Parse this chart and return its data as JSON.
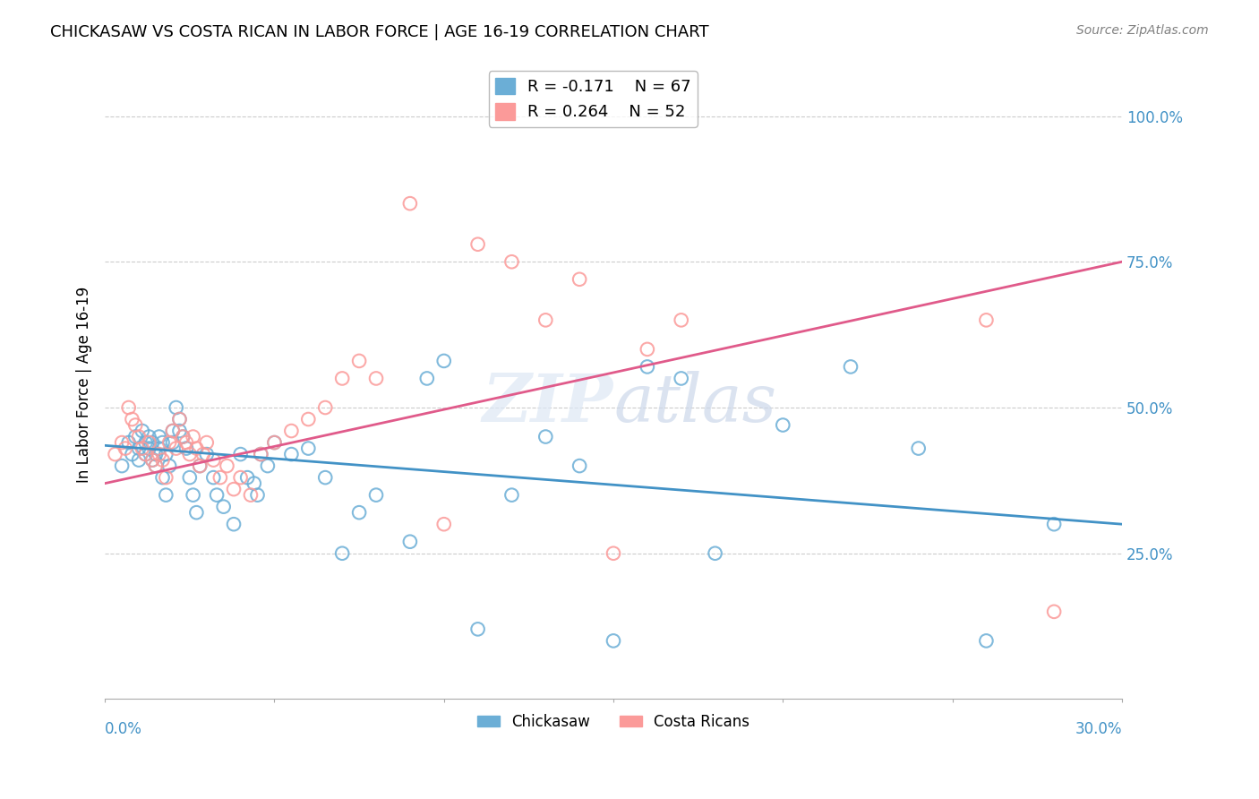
{
  "title": "CHICKASAW VS COSTA RICAN IN LABOR FORCE | AGE 16-19 CORRELATION CHART",
  "source": "Source: ZipAtlas.com",
  "ylabel": "In Labor Force | Age 16-19",
  "xlim": [
    0.0,
    0.3
  ],
  "ylim": [
    0.0,
    1.08
  ],
  "legend_blue_r": "-0.171",
  "legend_blue_n": "67",
  "legend_pink_r": "0.264",
  "legend_pink_n": "52",
  "blue_color": "#6baed6",
  "pink_color": "#fb9a99",
  "blue_line_color": "#4292c6",
  "pink_line_color": "#e05a8a",
  "tick_color": "#4292c6",
  "blue_scatter_x": [
    0.005,
    0.007,
    0.008,
    0.009,
    0.01,
    0.01,
    0.011,
    0.012,
    0.012,
    0.013,
    0.013,
    0.014,
    0.014,
    0.015,
    0.015,
    0.016,
    0.016,
    0.017,
    0.017,
    0.018,
    0.018,
    0.019,
    0.02,
    0.02,
    0.021,
    0.022,
    0.022,
    0.023,
    0.024,
    0.025,
    0.026,
    0.027,
    0.028,
    0.03,
    0.032,
    0.033,
    0.035,
    0.038,
    0.04,
    0.042,
    0.044,
    0.045,
    0.046,
    0.048,
    0.05,
    0.055,
    0.06,
    0.065,
    0.07,
    0.075,
    0.08,
    0.09,
    0.095,
    0.1,
    0.11,
    0.12,
    0.13,
    0.14,
    0.15,
    0.16,
    0.17,
    0.18,
    0.2,
    0.22,
    0.24,
    0.26,
    0.28
  ],
  "blue_scatter_y": [
    0.4,
    0.44,
    0.42,
    0.45,
    0.43,
    0.41,
    0.46,
    0.44,
    0.42,
    0.43,
    0.45,
    0.44,
    0.41,
    0.42,
    0.4,
    0.43,
    0.45,
    0.38,
    0.44,
    0.35,
    0.42,
    0.4,
    0.46,
    0.44,
    0.5,
    0.48,
    0.46,
    0.45,
    0.43,
    0.38,
    0.35,
    0.32,
    0.4,
    0.42,
    0.38,
    0.35,
    0.33,
    0.3,
    0.42,
    0.38,
    0.37,
    0.35,
    0.42,
    0.4,
    0.44,
    0.42,
    0.43,
    0.38,
    0.25,
    0.32,
    0.35,
    0.27,
    0.55,
    0.58,
    0.12,
    0.35,
    0.45,
    0.4,
    0.1,
    0.57,
    0.55,
    0.25,
    0.47,
    0.57,
    0.43,
    0.1,
    0.3
  ],
  "pink_scatter_x": [
    0.003,
    0.005,
    0.006,
    0.007,
    0.008,
    0.009,
    0.01,
    0.011,
    0.012,
    0.013,
    0.014,
    0.015,
    0.016,
    0.017,
    0.018,
    0.019,
    0.02,
    0.021,
    0.022,
    0.023,
    0.024,
    0.025,
    0.026,
    0.027,
    0.028,
    0.029,
    0.03,
    0.032,
    0.034,
    0.036,
    0.038,
    0.04,
    0.043,
    0.046,
    0.05,
    0.055,
    0.06,
    0.065,
    0.07,
    0.075,
    0.08,
    0.09,
    0.1,
    0.11,
    0.12,
    0.13,
    0.14,
    0.15,
    0.16,
    0.17,
    0.26,
    0.28
  ],
  "pink_scatter_y": [
    0.42,
    0.44,
    0.43,
    0.5,
    0.48,
    0.47,
    0.45,
    0.43,
    0.42,
    0.44,
    0.41,
    0.4,
    0.42,
    0.41,
    0.38,
    0.44,
    0.46,
    0.43,
    0.48,
    0.45,
    0.44,
    0.42,
    0.45,
    0.43,
    0.4,
    0.42,
    0.44,
    0.41,
    0.38,
    0.4,
    0.36,
    0.38,
    0.35,
    0.42,
    0.44,
    0.46,
    0.48,
    0.5,
    0.55,
    0.58,
    0.55,
    0.85,
    0.3,
    0.78,
    0.75,
    0.65,
    0.72,
    0.25,
    0.6,
    0.65,
    0.65,
    0.15
  ],
  "blue_trendline_x": [
    0.0,
    0.3
  ],
  "blue_trendline_y": [
    0.435,
    0.3
  ],
  "pink_trendline_x": [
    0.0,
    0.3
  ],
  "pink_trendline_y": [
    0.37,
    0.75
  ],
  "ytick_vals": [
    0.25,
    0.5,
    0.75,
    1.0
  ],
  "ytick_labels": [
    "25.0%",
    "50.0%",
    "75.0%",
    "100.0%"
  ],
  "xtick_vals": [
    0.0,
    0.05,
    0.1,
    0.15,
    0.2,
    0.25,
    0.3
  ]
}
